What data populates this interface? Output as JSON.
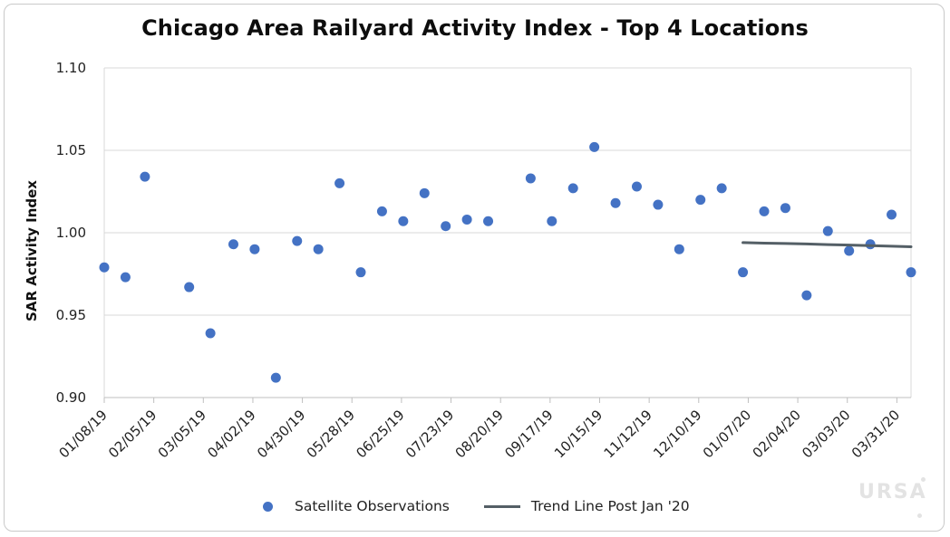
{
  "chart_data": {
    "type": "scatter",
    "title": "Chicago Area Railyard Activity Index - Top 4 Locations",
    "xlabel": "",
    "ylabel": "SAR Activity Index",
    "ylim": [
      0.9,
      1.1
    ],
    "yticks": [
      "0.90",
      "0.95",
      "1.00",
      "1.05",
      "1.10"
    ],
    "xlim": [
      "2019-01-08",
      "2020-04-08"
    ],
    "xticks": [
      "01/08/19",
      "02/05/19",
      "03/05/19",
      "04/02/19",
      "04/30/19",
      "05/28/19",
      "06/25/19",
      "07/23/19",
      "08/20/19",
      "09/17/19",
      "10/15/19",
      "11/12/19",
      "12/10/19",
      "01/07/20",
      "02/04/20",
      "03/03/20",
      "03/31/20"
    ],
    "grid": true,
    "legend_position": "bottom",
    "series": [
      {
        "name": "Satellite Observations",
        "type": "scatter",
        "color": "#4472c4",
        "points": [
          {
            "x": "2019-01-08",
            "y": 0.979
          },
          {
            "x": "2019-01-20",
            "y": 0.973
          },
          {
            "x": "2019-01-31",
            "y": 1.034
          },
          {
            "x": "2019-02-25",
            "y": 0.967
          },
          {
            "x": "2019-03-09",
            "y": 0.939
          },
          {
            "x": "2019-03-22",
            "y": 0.993
          },
          {
            "x": "2019-04-03",
            "y": 0.99
          },
          {
            "x": "2019-04-15",
            "y": 0.912
          },
          {
            "x": "2019-04-27",
            "y": 0.995
          },
          {
            "x": "2019-05-09",
            "y": 0.99
          },
          {
            "x": "2019-05-21",
            "y": 1.03
          },
          {
            "x": "2019-06-02",
            "y": 0.976
          },
          {
            "x": "2019-06-14",
            "y": 1.013
          },
          {
            "x": "2019-06-26",
            "y": 1.007
          },
          {
            "x": "2019-07-08",
            "y": 1.024
          },
          {
            "x": "2019-07-20",
            "y": 1.004
          },
          {
            "x": "2019-08-01",
            "y": 1.008
          },
          {
            "x": "2019-08-13",
            "y": 1.007
          },
          {
            "x": "2019-09-06",
            "y": 1.033
          },
          {
            "x": "2019-09-18",
            "y": 1.007
          },
          {
            "x": "2019-09-30",
            "y": 1.027
          },
          {
            "x": "2019-10-12",
            "y": 1.052
          },
          {
            "x": "2019-10-24",
            "y": 1.018
          },
          {
            "x": "2019-11-05",
            "y": 1.028
          },
          {
            "x": "2019-11-17",
            "y": 1.017
          },
          {
            "x": "2019-11-29",
            "y": 0.99
          },
          {
            "x": "2019-12-11",
            "y": 1.02
          },
          {
            "x": "2019-12-23",
            "y": 1.027
          },
          {
            "x": "2020-01-04",
            "y": 0.976
          },
          {
            "x": "2020-01-16",
            "y": 1.013
          },
          {
            "x": "2020-01-28",
            "y": 1.015
          },
          {
            "x": "2020-02-09",
            "y": 0.962
          },
          {
            "x": "2020-02-21",
            "y": 1.001
          },
          {
            "x": "2020-03-04",
            "y": 0.989
          },
          {
            "x": "2020-03-16",
            "y": 0.993
          },
          {
            "x": "2020-03-28",
            "y": 1.011
          },
          {
            "x": "2020-04-08",
            "y": 0.976
          }
        ]
      },
      {
        "name": "Trend Line Post Jan '20",
        "type": "line",
        "color": "#545f66",
        "points": [
          {
            "x": "2020-01-04",
            "y": 0.994
          },
          {
            "x": "2020-01-16",
            "y": 0.9937
          },
          {
            "x": "2020-01-28",
            "y": 0.9935
          },
          {
            "x": "2020-02-09",
            "y": 0.9932
          },
          {
            "x": "2020-02-21",
            "y": 0.9928
          },
          {
            "x": "2020-03-04",
            "y": 0.9925
          },
          {
            "x": "2020-03-16",
            "y": 0.9922
          },
          {
            "x": "2020-03-28",
            "y": 0.9918
          },
          {
            "x": "2020-04-08",
            "y": 0.9915
          }
        ]
      }
    ]
  },
  "legend": {
    "items": [
      "Satellite Observations",
      "Trend Line Post Jan '20"
    ]
  },
  "watermark": {
    "text": "URSA"
  },
  "colors": {
    "grid": "#d9d9d9",
    "axis": "#bfbfbf"
  }
}
